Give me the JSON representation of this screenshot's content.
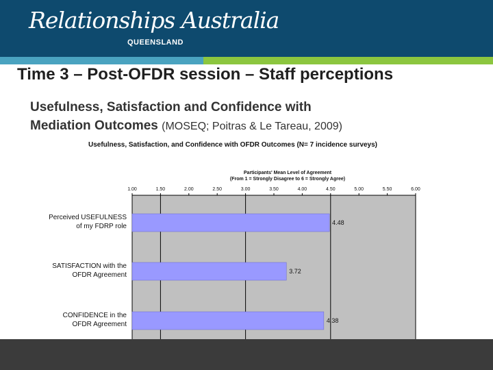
{
  "header": {
    "logo_text": "Relationships Australia",
    "logo_region": "QUEENSLAND",
    "brand_color": "#0e4a6e",
    "stripe_colors": [
      "#4aa3c0",
      "#8cc63f"
    ]
  },
  "slide": {
    "title": "Time 3 – Post-OFDR session – Staff perceptions",
    "subtitle_bold_line1": "Usefulness, Satisfaction and Confidence with",
    "subtitle_bold_line2": "Mediation Outcomes",
    "subtitle_citation": "(MOSEQ; Poitras & Le Tareau, 2009)"
  },
  "chart_data": {
    "type": "bar",
    "orientation": "horizontal",
    "title": "Usefulness, Satisfaction, and Confidence with OFDR Outcomes (N= 7 incidence surveys)",
    "xlabel_line1": "Participants' Mean Level of Agreement",
    "xlabel_line2": "(From 1 = Strongly Disagree to 6 = Strongly Agree)",
    "x_ticks": [
      "1.00",
      "1.50",
      "2.00",
      "2.50",
      "3.00",
      "3.50",
      "4.00",
      "4.50",
      "5.00",
      "5.50",
      "6.00"
    ],
    "xlim": [
      1,
      6
    ],
    "axis_position": "top",
    "categories": [
      [
        "Perceived USEFULNESS",
        "of my FDRP role"
      ],
      [
        "SATISFACTION with the",
        "OFDR Agreement"
      ],
      [
        "CONFIDENCE in the",
        "OFDR Agreement"
      ]
    ],
    "values": [
      4.48,
      3.72,
      4.38
    ],
    "value_labels": [
      "4.48",
      "3.72",
      "4.38"
    ],
    "bar_color": "#9999ff",
    "plot_background": "#c0c0c0"
  }
}
